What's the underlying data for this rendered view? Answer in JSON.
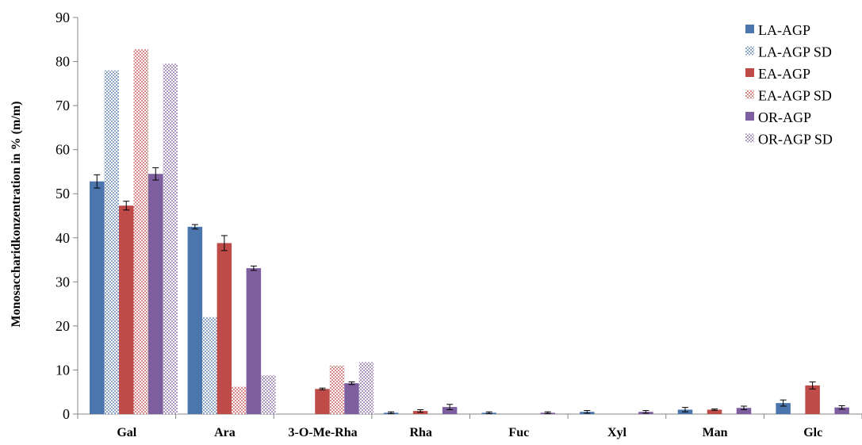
{
  "chart_data": {
    "type": "bar",
    "ylabel": "Monosaccharidkonzentration in % (m/m)",
    "xlabel": "",
    "ylim": [
      0,
      90
    ],
    "yticks": [
      0,
      10,
      20,
      30,
      40,
      50,
      60,
      70,
      80,
      90
    ],
    "grid": false,
    "legend_position": "top-right",
    "categories": [
      "Gal",
      "Ara",
      "3-O-Me-Rha",
      "Rha",
      "Fuc",
      "Xyl",
      "Man",
      "Glc"
    ],
    "series": [
      {
        "name": "LA-AGP",
        "pattern": "solid",
        "color": "#4a76ad",
        "values": [
          52.8,
          42.5,
          0,
          0.3,
          0.3,
          0.5,
          1.0,
          2.5
        ],
        "errors": [
          1.5,
          0.5,
          0,
          0.2,
          0.2,
          0.3,
          0.5,
          0.7
        ]
      },
      {
        "name": "LA-AGP SD",
        "pattern": "dotted",
        "color": "#4a76ad",
        "values": [
          78.0,
          22.0,
          0,
          0,
          0,
          0,
          0,
          0
        ],
        "errors": null
      },
      {
        "name": "EA-AGP",
        "pattern": "solid",
        "color": "#be4b48",
        "values": [
          47.3,
          38.8,
          5.7,
          0.7,
          0,
          0,
          1.0,
          6.5
        ],
        "errors": [
          1.0,
          1.7,
          0.2,
          0.3,
          0,
          0,
          0.15,
          0.8
        ]
      },
      {
        "name": "EA-AGP SD",
        "pattern": "dotted",
        "color": "#be4b48",
        "values": [
          82.8,
          6.2,
          11.0,
          0,
          0,
          0,
          0,
          0
        ],
        "errors": null
      },
      {
        "name": "OR-AGP",
        "pattern": "solid",
        "color": "#7d5fa0",
        "values": [
          54.5,
          33.1,
          7.0,
          1.6,
          0.3,
          0.5,
          1.4,
          1.5
        ],
        "errors": [
          1.4,
          0.5,
          0.3,
          0.6,
          0.2,
          0.3,
          0.4,
          0.4
        ]
      },
      {
        "name": "OR-AGP SD",
        "pattern": "dotted",
        "color": "#7d5fa0",
        "values": [
          79.5,
          8.8,
          11.8,
          0,
          0,
          0,
          0,
          0
        ],
        "errors": null
      }
    ]
  }
}
